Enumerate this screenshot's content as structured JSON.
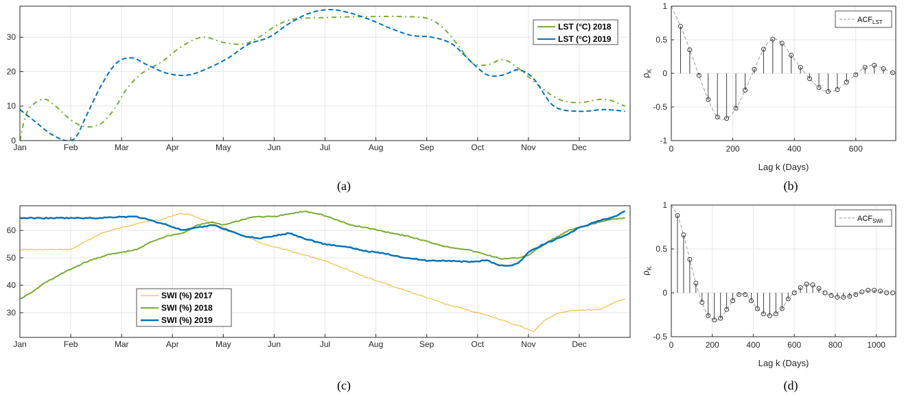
{
  "captions": {
    "a": "(a)",
    "b": "(b)",
    "c": "(c)",
    "d": "(d)"
  },
  "chart_data": [
    {
      "id": "a",
      "type": "line",
      "months": [
        "Jan",
        "Feb",
        "Mar",
        "Apr",
        "May",
        "Jun",
        "Jul",
        "Aug",
        "Sep",
        "Oct",
        "Nov",
        "Dec"
      ],
      "xlim": [
        0,
        12
      ],
      "ylim": [
        0,
        39
      ],
      "yticks": [
        0,
        10,
        20,
        30
      ],
      "grid": true,
      "legend_position": "top-right",
      "series": [
        {
          "name": "LST (°C) 2018",
          "color": "#77ac30",
          "dash": "7,5,2,5",
          "x": [
            0,
            0.15,
            0.45,
            0.7,
            1.0,
            1.3,
            1.6,
            1.85,
            2.1,
            2.4,
            2.8,
            3.2,
            3.6,
            4.0,
            4.4,
            4.7,
            5.0,
            5.3,
            5.6,
            6.0,
            6.5,
            7.0,
            7.5,
            8.0,
            8.3,
            8.6,
            8.9,
            9.2,
            9.5,
            9.8,
            10.2,
            10.6,
            11.0,
            11.5,
            11.9
          ],
          "y": [
            0,
            8.5,
            12,
            10,
            6,
            4,
            5,
            9,
            15,
            19.5,
            23,
            27.5,
            30,
            28.5,
            28,
            30,
            33,
            35,
            35.5,
            35.7,
            35.9,
            36,
            36,
            35.5,
            33,
            28,
            22.5,
            22,
            23.5,
            21,
            16,
            12,
            11,
            12,
            10
          ]
        },
        {
          "name": "LST (°C) 2019",
          "color": "#0072bd",
          "dash": "7,4",
          "x": [
            0,
            0.3,
            0.6,
            0.9,
            1.1,
            1.3,
            1.6,
            1.9,
            2.2,
            2.5,
            2.9,
            3.3,
            3.7,
            4.1,
            4.5,
            4.9,
            5.3,
            5.7,
            6.1,
            6.5,
            6.9,
            7.3,
            7.7,
            8.1,
            8.5,
            8.9,
            9.2,
            9.5,
            9.8,
            10.1,
            10.5,
            11.0,
            11.5,
            11.9
          ],
          "y": [
            9,
            5.5,
            2,
            0,
            1,
            7,
            16,
            22.5,
            24,
            22,
            19.5,
            19,
            21,
            24,
            28,
            30,
            34,
            37,
            38,
            37,
            35,
            32.5,
            30.5,
            30,
            28,
            22.5,
            19,
            19,
            20.5,
            18,
            10,
            8.5,
            9,
            8.5
          ]
        }
      ]
    },
    {
      "id": "b",
      "type": "scatter",
      "xlabel": "Lag k (Days)",
      "ylabel": "ρ",
      "ylabel_sub": "K",
      "xlim": [
        0,
        730
      ],
      "ylim": [
        -1,
        1
      ],
      "xticks": [
        0,
        200,
        400,
        600
      ],
      "yticks": [
        -1,
        -0.5,
        0,
        0.5,
        1
      ],
      "legend": "ACF",
      "legend_sub": "LST",
      "legend_position": "top-right",
      "lags": [
        0,
        30,
        60,
        90,
        120,
        150,
        180,
        210,
        240,
        270,
        300,
        330,
        360,
        390,
        420,
        450,
        480,
        510,
        540,
        570,
        600,
        630,
        660,
        690,
        720
      ],
      "values": [
        1,
        0.7,
        0.35,
        -0.03,
        -0.39,
        -0.65,
        -0.67,
        -0.52,
        -0.25,
        0.06,
        0.36,
        0.51,
        0.45,
        0.27,
        0.09,
        -0.08,
        -0.21,
        -0.27,
        -0.24,
        -0.13,
        -0.02,
        0.09,
        0.12,
        0.07,
        0.01
      ]
    },
    {
      "id": "c",
      "type": "line",
      "months": [
        "Jan",
        "Feb",
        "Mar",
        "Apr",
        "May",
        "Jun",
        "Jul",
        "Aug",
        "Sep",
        "Oct",
        "Nov",
        "Dec"
      ],
      "xlim": [
        0,
        12
      ],
      "ylim": [
        21,
        69
      ],
      "yticks": [
        30,
        40,
        50,
        60
      ],
      "grid": true,
      "legend_position": "bottom-left",
      "series": [
        {
          "name": "SWI (%) 2017",
          "color": "#edb120",
          "width": 1,
          "x": [
            0,
            1.0,
            1.1,
            1.3,
            1.6,
            2.0,
            2.4,
            2.8,
            3.1,
            3.3,
            3.6,
            4.0,
            4.4,
            4.8,
            5.2,
            5.6,
            6.0,
            6.4,
            6.8,
            7.2,
            7.6,
            8.0,
            8.4,
            8.8,
            9.2,
            9.6,
            10.0,
            10.1,
            10.3,
            10.6,
            11.0,
            11.4,
            11.6,
            11.9
          ],
          "y": [
            53,
            53,
            54,
            56,
            59,
            61,
            63,
            64,
            66,
            66,
            64,
            61,
            58,
            55,
            53,
            51,
            49,
            46,
            43,
            40.5,
            38,
            35.5,
            33,
            31,
            29,
            26.5,
            24,
            23,
            27,
            30,
            31,
            31,
            33,
            35
          ]
        },
        {
          "name": "SWI (%) 2018",
          "color": "#77ac30",
          "width": 2,
          "x": [
            0,
            0.2,
            0.5,
            0.9,
            1.3,
            1.7,
            2.0,
            2.3,
            2.6,
            2.9,
            3.2,
            3.5,
            3.8,
            4.0,
            4.3,
            4.6,
            5.0,
            5.3,
            5.6,
            5.9,
            6.2,
            6.5,
            6.8,
            7.2,
            7.6,
            8.0,
            8.4,
            8.8,
            9.2,
            9.5,
            9.8,
            10.0,
            10.4,
            10.8,
            11.2,
            11.6,
            11.9
          ],
          "y": [
            35,
            37,
            41,
            45,
            48.5,
            51,
            52,
            53,
            56,
            58,
            59,
            62,
            63,
            62,
            63.5,
            65,
            65,
            66,
            67,
            66,
            64,
            62,
            61,
            59.5,
            58,
            56,
            54,
            53,
            51,
            49.5,
            50,
            51,
            56,
            60,
            62,
            64,
            64.5
          ]
        },
        {
          "name": "SWI (%) 2019",
          "color": "#0072bd",
          "width": 2.5,
          "x": [
            0,
            1.0,
            1.5,
            2.0,
            2.3,
            2.6,
            2.9,
            3.2,
            3.5,
            3.8,
            4.1,
            4.4,
            4.7,
            5.0,
            5.3,
            5.6,
            6.0,
            6.4,
            6.8,
            7.2,
            7.6,
            8.0,
            8.4,
            8.8,
            9.2,
            9.4,
            9.6,
            9.8,
            10.0,
            10.3,
            10.7,
            11.0,
            11.4,
            11.7,
            11.9
          ],
          "y": [
            64.5,
            64.5,
            64.5,
            65,
            65,
            63.5,
            62,
            60,
            61,
            62,
            60,
            58,
            57,
            58,
            59,
            57,
            55,
            54,
            52.5,
            51.5,
            50,
            49,
            49,
            48.5,
            49,
            47.5,
            47,
            48,
            52,
            55,
            58,
            61,
            63.5,
            65,
            67
          ]
        }
      ]
    },
    {
      "id": "d",
      "type": "scatter",
      "xlabel": "Lag k (Days)",
      "ylabel": "ρ",
      "ylabel_sub": "K",
      "xlim": [
        0,
        1095
      ],
      "ylim": [
        -0.5,
        1
      ],
      "xticks": [
        0,
        200,
        400,
        600,
        800,
        1000
      ],
      "yticks": [
        -0.5,
        0,
        0.5,
        1
      ],
      "legend": "ACF",
      "legend_sub": "SWI",
      "legend_position": "top-right",
      "lags": [
        0,
        30,
        60,
        90,
        120,
        150,
        180,
        210,
        240,
        270,
        300,
        330,
        360,
        390,
        420,
        450,
        480,
        510,
        540,
        570,
        600,
        630,
        660,
        690,
        720,
        750,
        780,
        810,
        840,
        870,
        900,
        930,
        960,
        990,
        1020,
        1050,
        1080
      ],
      "values": [
        1,
        0.88,
        0.66,
        0.38,
        0.11,
        -0.11,
        -0.26,
        -0.31,
        -0.29,
        -0.19,
        -0.09,
        -0.02,
        -0.02,
        -0.09,
        -0.18,
        -0.24,
        -0.26,
        -0.24,
        -0.18,
        -0.07,
        0.0,
        0.06,
        0.1,
        0.09,
        0.05,
        0.0,
        -0.03,
        -0.05,
        -0.05,
        -0.04,
        -0.02,
        0.01,
        0.03,
        0.03,
        0.02,
        0.0,
        0.0
      ]
    }
  ]
}
